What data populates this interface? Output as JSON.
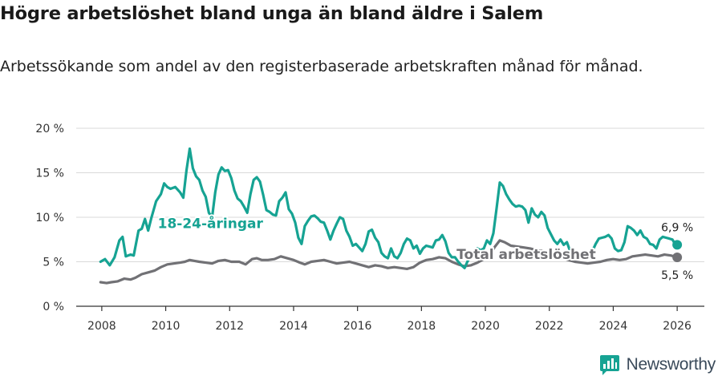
{
  "title": "Högre arbetslöshet bland unga än bland äldre i Salem",
  "subtitle": "Arbetssökande som andel av den registerbaserade arbetskraften månad för månad.",
  "brand": {
    "name": "Newsworthy"
  },
  "colors": {
    "youth": "#16a393",
    "total": "#717175",
    "grid": "#d9d9d9",
    "axis": "#333333"
  },
  "chart_data": {
    "type": "line",
    "title": "Högre arbetslöshet bland unga än bland äldre i Salem",
    "xlabel": "",
    "ylabel": "",
    "xlim": [
      2007.2,
      2026.85
    ],
    "ylim": [
      0,
      20
    ],
    "y_ticks": [
      0,
      5,
      10,
      15,
      20
    ],
    "y_tick_labels": [
      "0 %",
      "5 %",
      "10 %",
      "15 %",
      "20 %"
    ],
    "x_ticks": [
      2008,
      2010,
      2012,
      2014,
      2016,
      2018,
      2020,
      2022,
      2024,
      2026
    ],
    "x_tick_labels": [
      "2008",
      "2010",
      "2012",
      "2014",
      "2016",
      "2018",
      "2020",
      "2022",
      "2024",
      "2026"
    ],
    "grid": true,
    "series": [
      {
        "name": "18-24-åringar",
        "color": "#16a393",
        "label_at": [
          2009.75,
          8.8
        ],
        "end_label": "6,9 %",
        "points": [
          [
            2007.96,
            5.0
          ],
          [
            2008.1,
            5.3
          ],
          [
            2008.25,
            4.6
          ],
          [
            2008.4,
            5.5
          ],
          [
            2008.55,
            7.4
          ],
          [
            2008.65,
            7.8
          ],
          [
            2008.75,
            5.6
          ],
          [
            2008.9,
            5.8
          ],
          [
            2009.0,
            5.7
          ],
          [
            2009.15,
            8.5
          ],
          [
            2009.25,
            8.7
          ],
          [
            2009.35,
            9.8
          ],
          [
            2009.45,
            8.5
          ],
          [
            2009.55,
            9.9
          ],
          [
            2009.7,
            11.8
          ],
          [
            2009.85,
            12.6
          ],
          [
            2009.95,
            13.8
          ],
          [
            2010.05,
            13.4
          ],
          [
            2010.15,
            13.2
          ],
          [
            2010.3,
            13.4
          ],
          [
            2010.45,
            12.8
          ],
          [
            2010.55,
            12.2
          ],
          [
            2010.65,
            15.3
          ],
          [
            2010.75,
            17.7
          ],
          [
            2010.85,
            15.5
          ],
          [
            2010.95,
            14.6
          ],
          [
            2011.05,
            14.2
          ],
          [
            2011.15,
            13.0
          ],
          [
            2011.25,
            12.3
          ],
          [
            2011.35,
            10.5
          ],
          [
            2011.45,
            10.0
          ],
          [
            2011.55,
            12.8
          ],
          [
            2011.65,
            14.8
          ],
          [
            2011.75,
            15.6
          ],
          [
            2011.85,
            15.2
          ],
          [
            2011.95,
            15.3
          ],
          [
            2012.05,
            14.4
          ],
          [
            2012.15,
            13.0
          ],
          [
            2012.25,
            12.1
          ],
          [
            2012.35,
            11.8
          ],
          [
            2012.45,
            11.2
          ],
          [
            2012.55,
            10.5
          ],
          [
            2012.65,
            12.6
          ],
          [
            2012.75,
            14.2
          ],
          [
            2012.85,
            14.5
          ],
          [
            2012.95,
            14.0
          ],
          [
            2013.05,
            12.5
          ],
          [
            2013.15,
            10.8
          ],
          [
            2013.25,
            10.6
          ],
          [
            2013.35,
            10.3
          ],
          [
            2013.45,
            10.2
          ],
          [
            2013.55,
            11.8
          ],
          [
            2013.65,
            12.2
          ],
          [
            2013.75,
            12.8
          ],
          [
            2013.85,
            10.9
          ],
          [
            2013.95,
            10.4
          ],
          [
            2014.05,
            9.4
          ],
          [
            2014.15,
            7.7
          ],
          [
            2014.25,
            7.0
          ],
          [
            2014.35,
            9.0
          ],
          [
            2014.45,
            9.6
          ],
          [
            2014.55,
            10.1
          ],
          [
            2014.65,
            10.2
          ],
          [
            2014.75,
            9.9
          ],
          [
            2014.85,
            9.5
          ],
          [
            2014.95,
            9.4
          ],
          [
            2015.05,
            8.5
          ],
          [
            2015.15,
            7.5
          ],
          [
            2015.25,
            8.5
          ],
          [
            2015.35,
            9.3
          ],
          [
            2015.45,
            10.0
          ],
          [
            2015.55,
            9.8
          ],
          [
            2015.65,
            8.5
          ],
          [
            2015.75,
            7.8
          ],
          [
            2015.85,
            6.8
          ],
          [
            2015.95,
            7.0
          ],
          [
            2016.05,
            6.6
          ],
          [
            2016.15,
            6.2
          ],
          [
            2016.25,
            7.0
          ],
          [
            2016.35,
            8.4
          ],
          [
            2016.45,
            8.6
          ],
          [
            2016.55,
            7.7
          ],
          [
            2016.65,
            7.2
          ],
          [
            2016.75,
            6.0
          ],
          [
            2016.85,
            5.6
          ],
          [
            2016.95,
            5.4
          ],
          [
            2017.05,
            6.5
          ],
          [
            2017.15,
            5.6
          ],
          [
            2017.25,
            5.4
          ],
          [
            2017.35,
            6.0
          ],
          [
            2017.45,
            7.0
          ],
          [
            2017.55,
            7.6
          ],
          [
            2017.65,
            7.4
          ],
          [
            2017.75,
            6.5
          ],
          [
            2017.85,
            6.8
          ],
          [
            2017.95,
            5.9
          ],
          [
            2018.05,
            6.5
          ],
          [
            2018.15,
            6.8
          ],
          [
            2018.25,
            6.7
          ],
          [
            2018.35,
            6.6
          ],
          [
            2018.45,
            7.4
          ],
          [
            2018.55,
            7.5
          ],
          [
            2018.65,
            8.0
          ],
          [
            2018.75,
            7.3
          ],
          [
            2018.85,
            6.0
          ],
          [
            2018.95,
            5.5
          ],
          [
            2019.05,
            5.5
          ],
          [
            2019.15,
            5.0
          ],
          [
            2019.25,
            4.6
          ],
          [
            2019.35,
            4.3
          ],
          [
            2019.45,
            5.1
          ],
          [
            2019.55,
            5.6
          ],
          [
            2019.65,
            6.0
          ],
          [
            2019.75,
            6.5
          ],
          [
            2019.85,
            6.3
          ],
          [
            2019.95,
            6.5
          ],
          [
            2020.05,
            7.4
          ],
          [
            2020.15,
            7.0
          ],
          [
            2020.25,
            8.2
          ],
          [
            2020.35,
            11.0
          ],
          [
            2020.45,
            13.9
          ],
          [
            2020.55,
            13.5
          ],
          [
            2020.65,
            12.6
          ],
          [
            2020.75,
            12.0
          ],
          [
            2020.85,
            11.5
          ],
          [
            2020.95,
            11.2
          ],
          [
            2021.05,
            11.3
          ],
          [
            2021.15,
            11.2
          ],
          [
            2021.25,
            10.8
          ],
          [
            2021.35,
            9.4
          ],
          [
            2021.45,
            11.0
          ],
          [
            2021.55,
            10.3
          ],
          [
            2021.65,
            10.0
          ],
          [
            2021.75,
            10.6
          ],
          [
            2021.85,
            10.2
          ],
          [
            2021.95,
            8.8
          ],
          [
            2022.05,
            8.1
          ],
          [
            2022.15,
            7.4
          ],
          [
            2022.25,
            7.0
          ],
          [
            2022.35,
            7.5
          ],
          [
            2022.45,
            6.9
          ],
          [
            2022.55,
            7.2
          ],
          [
            2022.65,
            6.2
          ],
          [
            2022.75,
            6.5
          ],
          [
            2022.85,
            5.8
          ],
          [
            2022.95,
            5.6
          ],
          [
            2023.05,
            5.4
          ],
          [
            2023.15,
            5.8
          ],
          [
            2023.25,
            5.5
          ],
          [
            2023.35,
            6.2
          ],
          [
            2023.45,
            7.0
          ],
          [
            2023.55,
            7.6
          ],
          [
            2023.65,
            7.7
          ],
          [
            2023.75,
            7.8
          ],
          [
            2023.85,
            8.0
          ],
          [
            2023.95,
            7.6
          ],
          [
            2024.05,
            6.5
          ],
          [
            2024.15,
            6.2
          ],
          [
            2024.25,
            6.3
          ],
          [
            2024.35,
            7.2
          ],
          [
            2024.45,
            9.0
          ],
          [
            2024.55,
            8.8
          ],
          [
            2024.65,
            8.5
          ],
          [
            2024.75,
            8.0
          ],
          [
            2024.85,
            8.5
          ],
          [
            2024.95,
            7.8
          ],
          [
            2025.05,
            7.6
          ],
          [
            2025.15,
            7.0
          ],
          [
            2025.25,
            6.9
          ],
          [
            2025.35,
            6.5
          ],
          [
            2025.45,
            7.5
          ],
          [
            2025.55,
            7.8
          ],
          [
            2025.65,
            7.7
          ],
          [
            2025.75,
            7.6
          ],
          [
            2025.85,
            7.5
          ],
          [
            2025.95,
            6.9
          ],
          [
            2026.0,
            6.9
          ]
        ]
      },
      {
        "name": "Total arbetslöshet",
        "color": "#717175",
        "label_at": [
          2019.1,
          5.3
        ],
        "end_label": "5,5 %",
        "points": [
          [
            2007.96,
            2.7
          ],
          [
            2008.15,
            2.6
          ],
          [
            2008.3,
            2.7
          ],
          [
            2008.5,
            2.8
          ],
          [
            2008.7,
            3.1
          ],
          [
            2008.9,
            3.0
          ],
          [
            2009.05,
            3.2
          ],
          [
            2009.25,
            3.6
          ],
          [
            2009.45,
            3.8
          ],
          [
            2009.65,
            4.0
          ],
          [
            2009.85,
            4.4
          ],
          [
            2010.05,
            4.7
          ],
          [
            2010.25,
            4.8
          ],
          [
            2010.45,
            4.9
          ],
          [
            2010.6,
            5.0
          ],
          [
            2010.75,
            5.2
          ],
          [
            2010.9,
            5.1
          ],
          [
            2011.05,
            5.0
          ],
          [
            2011.25,
            4.9
          ],
          [
            2011.45,
            4.8
          ],
          [
            2011.65,
            5.1
          ],
          [
            2011.85,
            5.2
          ],
          [
            2012.05,
            5.0
          ],
          [
            2012.3,
            5.0
          ],
          [
            2012.5,
            4.7
          ],
          [
            2012.7,
            5.3
          ],
          [
            2012.85,
            5.4
          ],
          [
            2013.0,
            5.2
          ],
          [
            2013.2,
            5.2
          ],
          [
            2013.4,
            5.3
          ],
          [
            2013.6,
            5.6
          ],
          [
            2013.8,
            5.4
          ],
          [
            2014.0,
            5.2
          ],
          [
            2014.2,
            4.9
          ],
          [
            2014.35,
            4.7
          ],
          [
            2014.55,
            5.0
          ],
          [
            2014.75,
            5.1
          ],
          [
            2014.95,
            5.2
          ],
          [
            2015.15,
            5.0
          ],
          [
            2015.35,
            4.8
          ],
          [
            2015.55,
            4.9
          ],
          [
            2015.75,
            5.0
          ],
          [
            2015.95,
            4.8
          ],
          [
            2016.15,
            4.6
          ],
          [
            2016.35,
            4.4
          ],
          [
            2016.55,
            4.6
          ],
          [
            2016.75,
            4.5
          ],
          [
            2016.95,
            4.3
          ],
          [
            2017.15,
            4.4
          ],
          [
            2017.35,
            4.3
          ],
          [
            2017.55,
            4.2
          ],
          [
            2017.75,
            4.4
          ],
          [
            2017.95,
            4.9
          ],
          [
            2018.15,
            5.2
          ],
          [
            2018.35,
            5.3
          ],
          [
            2018.55,
            5.5
          ],
          [
            2018.75,
            5.4
          ],
          [
            2018.95,
            5.0
          ],
          [
            2019.15,
            4.7
          ],
          [
            2019.35,
            4.5
          ],
          [
            2019.55,
            4.6
          ],
          [
            2019.75,
            4.9
          ],
          [
            2019.95,
            5.3
          ],
          [
            2020.15,
            5.8
          ],
          [
            2020.3,
            6.7
          ],
          [
            2020.45,
            7.4
          ],
          [
            2020.6,
            7.2
          ],
          [
            2020.8,
            6.8
          ],
          [
            2021.0,
            6.7
          ],
          [
            2021.2,
            6.6
          ],
          [
            2021.4,
            6.5
          ],
          [
            2021.6,
            6.3
          ],
          [
            2021.8,
            6.2
          ],
          [
            2022.0,
            5.9
          ],
          [
            2022.2,
            5.6
          ],
          [
            2022.4,
            5.4
          ],
          [
            2022.6,
            5.2
          ],
          [
            2022.8,
            5.0
          ],
          [
            2023.0,
            4.9
          ],
          [
            2023.2,
            4.8
          ],
          [
            2023.4,
            4.9
          ],
          [
            2023.6,
            5.0
          ],
          [
            2023.8,
            5.2
          ],
          [
            2024.0,
            5.3
          ],
          [
            2024.2,
            5.2
          ],
          [
            2024.4,
            5.3
          ],
          [
            2024.6,
            5.6
          ],
          [
            2024.8,
            5.7
          ],
          [
            2025.0,
            5.8
          ],
          [
            2025.2,
            5.7
          ],
          [
            2025.4,
            5.6
          ],
          [
            2025.6,
            5.8
          ],
          [
            2025.8,
            5.7
          ],
          [
            2026.0,
            5.5
          ]
        ]
      }
    ]
  }
}
